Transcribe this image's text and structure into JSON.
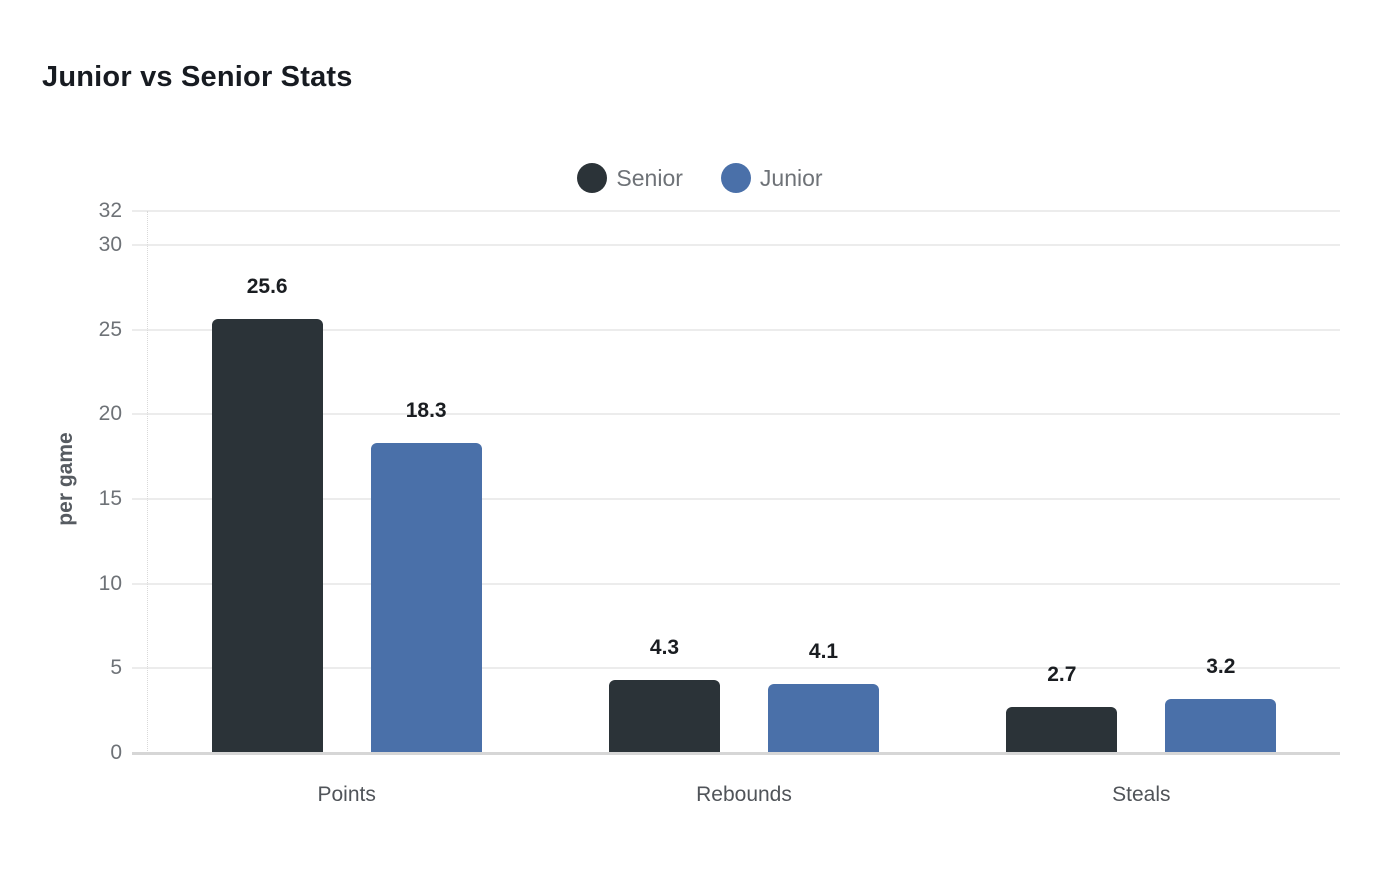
{
  "chart": {
    "title": "Junior vs Senior Stats",
    "ylabel": "per game"
  },
  "chart_data": {
    "type": "bar",
    "title": "Junior vs Senior Stats",
    "categories": [
      "Points",
      "Rebounds",
      "Steals"
    ],
    "series": [
      {
        "name": "Senior",
        "color": "#2b3338",
        "values": [
          25.6,
          4.3,
          2.7
        ]
      },
      {
        "name": "Junior",
        "color": "#4a70a9",
        "values": [
          18.3,
          4.1,
          3.2
        ]
      }
    ],
    "xlabel": "",
    "ylabel": "per game",
    "ylim": [
      0,
      32
    ],
    "yticks": [
      0,
      5,
      10,
      15,
      20,
      25,
      30,
      32
    ],
    "grid": true,
    "value_labels": [
      "25.6",
      "18.3",
      "4.3",
      "4.1",
      "2.7",
      "3.2"
    ],
    "legend_position": "top-center",
    "legend_marker": "circle",
    "colors": {
      "background": "#ffffff",
      "title_text": "#171b21",
      "grid_line": "#ececec",
      "axis_line": "#d6d6d6",
      "y_tick_text": "#6e7277",
      "x_tick_text": "#505459",
      "value_label_text": "#1a1d21",
      "legend_text": "#6e7277"
    }
  }
}
